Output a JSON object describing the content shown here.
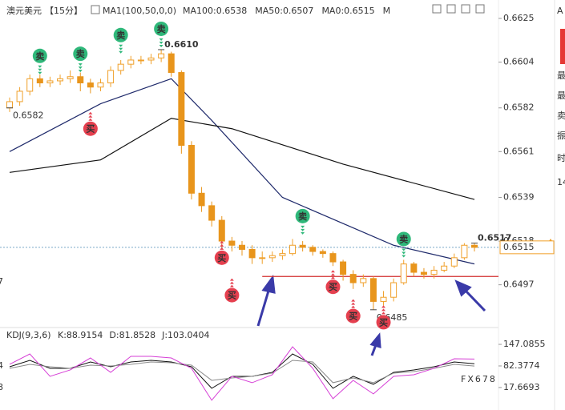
{
  "header": {
    "symbol": "澳元美元",
    "period": "【15分】",
    "indicator": "MA1(100,50,0,0)",
    "items": [
      {
        "text": "MA100:0.6538",
        "color": "#222222"
      },
      {
        "text": "MA50:0.6507",
        "color": "#1f2a6b"
      },
      {
        "text": "MA0:0.6515",
        "color": "#e040e0"
      },
      {
        "text": "M",
        "color": "#e53935"
      }
    ]
  },
  "chart_data": [
    {
      "type": "candlestick",
      "open": [
        0.6582,
        0.6585,
        0.659,
        0.6596,
        0.6594,
        0.6595,
        0.6596,
        0.6597,
        0.6594,
        0.6592,
        0.6594,
        0.66,
        0.6603,
        0.6605,
        0.6605,
        0.6606,
        0.6608,
        0.6599,
        0.6564,
        0.6541,
        0.6535,
        0.6528,
        0.6518,
        0.6516,
        0.6514,
        0.651,
        0.651,
        0.6511,
        0.6512,
        0.6516,
        0.6515,
        0.6513,
        0.6512,
        0.6508,
        0.6502,
        0.6498,
        0.65,
        0.6489,
        0.6491,
        0.6498,
        0.6507,
        0.6503,
        0.6502,
        0.6504,
        0.6506,
        0.651,
        0.6516
      ],
      "high": [
        0.6587,
        0.6592,
        0.6598,
        0.6598,
        0.6597,
        0.6598,
        0.66,
        0.6599,
        0.6596,
        0.6596,
        0.6602,
        0.6605,
        0.6607,
        0.6607,
        0.6608,
        0.661,
        0.6609,
        0.66,
        0.6566,
        0.6544,
        0.6537,
        0.653,
        0.652,
        0.6518,
        0.6516,
        0.6513,
        0.6513,
        0.6514,
        0.6519,
        0.6518,
        0.6516,
        0.6514,
        0.6513,
        0.6509,
        0.6504,
        0.6502,
        0.6501,
        0.6494,
        0.65,
        0.6509,
        0.6508,
        0.6505,
        0.6506,
        0.6508,
        0.6512,
        0.6517,
        0.6517
      ],
      "low": [
        0.658,
        0.6583,
        0.6588,
        0.6592,
        0.6592,
        0.6593,
        0.6594,
        0.659,
        0.6589,
        0.659,
        0.6592,
        0.6598,
        0.6601,
        0.6603,
        0.6603,
        0.6604,
        0.6597,
        0.656,
        0.6538,
        0.6532,
        0.6525,
        0.6515,
        0.6513,
        0.6511,
        0.6507,
        0.6507,
        0.6508,
        0.6509,
        0.6511,
        0.6513,
        0.6511,
        0.651,
        0.6506,
        0.6499,
        0.6495,
        0.6496,
        0.6485,
        0.6487,
        0.6489,
        0.6497,
        0.6501,
        0.65,
        0.65,
        0.6503,
        0.6505,
        0.6509,
        0.6513
      ],
      "close": [
        0.6585,
        0.659,
        0.6596,
        0.6594,
        0.6595,
        0.6596,
        0.6597,
        0.6594,
        0.6592,
        0.6594,
        0.66,
        0.6603,
        0.6605,
        0.6605,
        0.6606,
        0.6608,
        0.6599,
        0.6564,
        0.6541,
        0.6535,
        0.6528,
        0.6518,
        0.6516,
        0.6514,
        0.651,
        0.651,
        0.6511,
        0.6512,
        0.6516,
        0.6515,
        0.6513,
        0.6512,
        0.6508,
        0.6502,
        0.6498,
        0.65,
        0.6489,
        0.6491,
        0.6498,
        0.6507,
        0.6503,
        0.6502,
        0.6504,
        0.6506,
        0.651,
        0.6516,
        0.6515
      ],
      "up_color": "#f0a02a",
      "down_color": "#e8951c",
      "ylim": [
        0.6478,
        0.663
      ],
      "yticks": [
        0.6625,
        0.6604,
        0.6582,
        0.6561,
        0.6539,
        0.6518,
        0.6497
      ],
      "lines": [
        {
          "color": "#1f2a6b",
          "x": [
            0,
            9,
            16,
            20,
            27,
            38,
            46
          ],
          "values": [
            0.6561,
            0.6584,
            0.6596,
            0.6576,
            0.6539,
            0.6516,
            0.6507
          ]
        },
        {
          "color": "#111111",
          "x": [
            0,
            9,
            16,
            22,
            33,
            46
          ],
          "values": [
            0.6551,
            0.6557,
            0.6577,
            0.6572,
            0.6555,
            0.6538
          ]
        }
      ],
      "support": {
        "value": 0.6501,
        "from": 25,
        "color": "#d32f2f"
      },
      "last_price": {
        "value": 0.6515,
        "color": "#f0a02a"
      },
      "price_labels": [
        {
          "i": 0,
          "value": 0.6582,
          "color": "#666666"
        },
        {
          "i": 15,
          "value": 0.661,
          "label": "0.6610",
          "color": "#f0a02a"
        },
        {
          "i": 36,
          "value": 0.6485,
          "color": "#666666"
        },
        {
          "i": 46,
          "value": 0.6517,
          "color": "#f0a02a"
        }
      ],
      "signals": [
        {
          "i": 3,
          "text": "卖",
          "value": 0.6607
        },
        {
          "i": 7,
          "text": "卖",
          "value": 0.6608
        },
        {
          "i": 11,
          "text": "卖",
          "value": 0.6617
        },
        {
          "i": 15,
          "text": "卖",
          "value": 0.662
        },
        {
          "i": 29,
          "text": "卖",
          "value": 0.653
        },
        {
          "i": 39,
          "text": "卖",
          "value": 0.6519
        },
        {
          "i": 8,
          "text": "买",
          "value": 0.6572
        },
        {
          "i": 21,
          "text": "买",
          "value": 0.651
        },
        {
          "i": 22,
          "text": "买",
          "value": 0.6492
        },
        {
          "i": 32,
          "text": "买",
          "value": 0.6496
        },
        {
          "i": 34,
          "text": "买",
          "value": 0.6482
        },
        {
          "i": 37,
          "text": "买",
          "value": 0.6479
        }
      ]
    },
    {
      "type": "line",
      "title": "KDJ(9,3,6)",
      "items": [
        {
          "text": "K:88.9154",
          "color": "#222222"
        },
        {
          "text": "D:81.8528",
          "color": "#222222"
        },
        {
          "text": "J:103.0404",
          "color": "#d63fd6"
        }
      ],
      "x": [
        0,
        2,
        4,
        6,
        8,
        10,
        12,
        14,
        16,
        18,
        20,
        22,
        24,
        26,
        28,
        30,
        32,
        34,
        36,
        38,
        40,
        42,
        44,
        46
      ],
      "series": [
        {
          "color": "#111111",
          "values": [
            80.0,
            99.1,
            75.2,
            75.2,
            94.4,
            80.0,
            94.4,
            99.1,
            94.4,
            80.0,
            15.3,
            51.2,
            51.2,
            63.2,
            118.3,
            87.2,
            15.3,
            51.2,
            27.3,
            63.2,
            70.4,
            80.0,
            94.4,
            88.9
          ]
        },
        {
          "color": "#8a8a8a",
          "values": [
            75.2,
            87.2,
            80.0,
            75.2,
            84.8,
            82.4,
            87.2,
            94.4,
            92.0,
            84.8,
            39.2,
            46.4,
            51.2,
            60.8,
            99.1,
            94.4,
            32.1,
            46.4,
            32.1,
            60.8,
            65.6,
            75.2,
            87.2,
            81.9
          ]
        },
        {
          "color": "#d63fd6",
          "values": [
            87.2,
            118.3,
            51.2,
            70.4,
            106.3,
            63.2,
            111.1,
            111.1,
            106.3,
            75.2,
            -20.6,
            51.2,
            32.1,
            56.0,
            139.9,
            75.2,
            -15.9,
            39.2,
            -1.5,
            51.2,
            56.0,
            75.2,
            103.9,
            103.0
          ]
        }
      ],
      "ylim": [
        -45,
        176
      ],
      "yticks": [
        147.0855,
        82.3774,
        17.6693
      ]
    }
  ],
  "watermark": "FX678",
  "sidebar": [
    "A",
    "最",
    "最",
    "卖",
    "振",
    "时",
    "14"
  ],
  "left_fragments": [
    "7",
    "4",
    "8"
  ]
}
